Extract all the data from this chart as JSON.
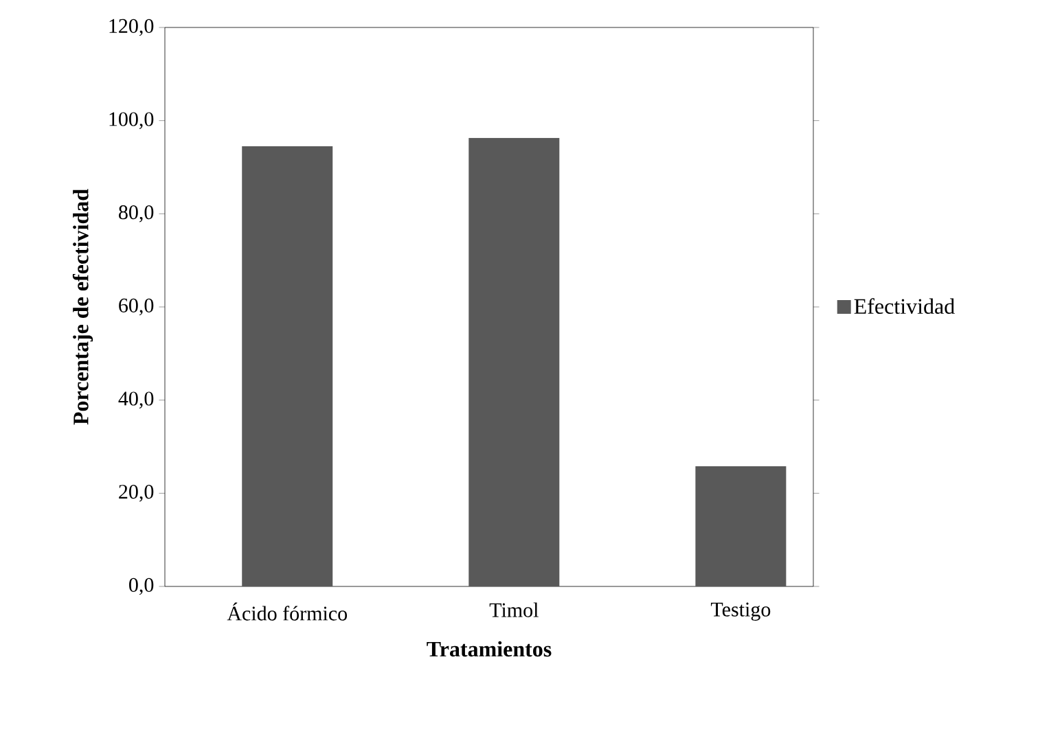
{
  "chart_data": {
    "type": "bar",
    "xlabel": "Tratamientos",
    "ylabel": "Porcentaje de efectividad",
    "categories": [
      "Ácido fórmico",
      "Timol",
      "Testigo"
    ],
    "series": [
      {
        "name": "Efectividad",
        "color": "#595959",
        "values": [
          94.5,
          96.3,
          25.8
        ]
      }
    ],
    "ylim": [
      0,
      120
    ],
    "yticks": [
      {
        "value": 0,
        "label": "0,0"
      },
      {
        "value": 20,
        "label": "20,0"
      },
      {
        "value": 40,
        "label": "40,0"
      },
      {
        "value": 60,
        "label": "60,0"
      },
      {
        "value": 80,
        "label": "80,0"
      },
      {
        "value": 100,
        "label": "100,0"
      },
      {
        "value": 120,
        "label": "120,0"
      }
    ],
    "grid": false,
    "legend": "right"
  }
}
